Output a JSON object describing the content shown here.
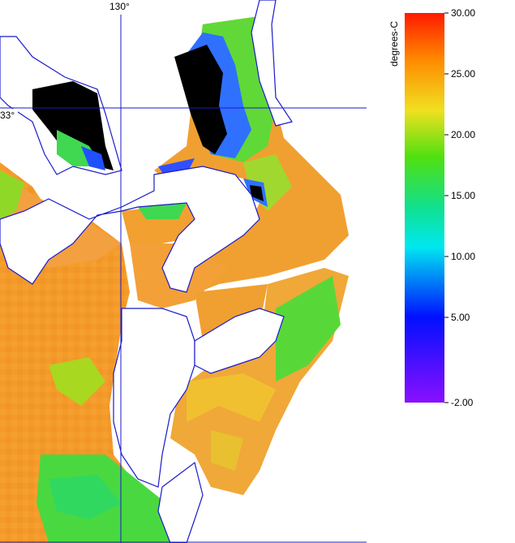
{
  "map": {
    "lon_label": "130°",
    "lat_label": "33°",
    "colorbar": {
      "title": "degrees-C",
      "lim": [
        -2,
        30
      ],
      "ticks": [
        {
          "value": 30,
          "label": "30.00"
        },
        {
          "value": 25,
          "label": "25.00"
        },
        {
          "value": 20,
          "label": "20.00"
        },
        {
          "value": 15,
          "label": "15.00"
        },
        {
          "value": 10,
          "label": "10.00"
        },
        {
          "value": 5,
          "label": "5.00"
        },
        {
          "value": -2,
          "label": "-2.00"
        }
      ]
    }
  }
}
